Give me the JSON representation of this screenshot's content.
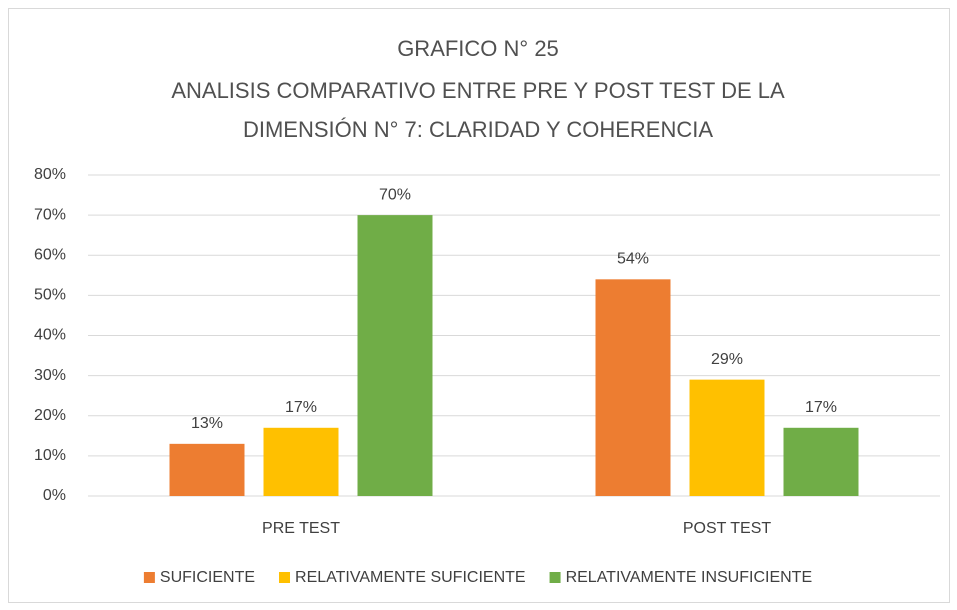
{
  "chart_data": {
    "type": "bar",
    "title": [
      "GRAFICO N° 25",
      "ANALISIS COMPARATIVO ENTRE PRE Y POST TEST DE LA",
      "DIMENSIÓN N° 7: CLARIDAD Y COHERENCIA"
    ],
    "categories": [
      "PRE TEST",
      "POST TEST"
    ],
    "series": [
      {
        "name": "SUFICIENTE",
        "color": "#ed7d31",
        "values": [
          13,
          54
        ],
        "value_labels": [
          "13%",
          "54%"
        ]
      },
      {
        "name": "RELATIVAMENTE SUFICIENTE",
        "color": "#ffc000",
        "values": [
          17,
          29
        ],
        "value_labels": [
          "17%",
          "29%"
        ]
      },
      {
        "name": "RELATIVAMENTE INSUFICIENTE",
        "color": "#70ad47",
        "values": [
          70,
          17
        ],
        "value_labels": [
          "70%",
          "17%"
        ]
      }
    ],
    "ylim": [
      0,
      80
    ],
    "yticks": [
      {
        "value": 0,
        "label": "0%"
      },
      {
        "value": 10,
        "label": "10%"
      },
      {
        "value": 20,
        "label": "20%"
      },
      {
        "value": 30,
        "label": "30%"
      },
      {
        "value": 40,
        "label": "40%"
      },
      {
        "value": 50,
        "label": "50%"
      },
      {
        "value": 60,
        "label": "60%"
      },
      {
        "value": 70,
        "label": "70%"
      },
      {
        "value": 80,
        "label": "80%"
      }
    ],
    "grid": true,
    "legend": "bottom"
  }
}
